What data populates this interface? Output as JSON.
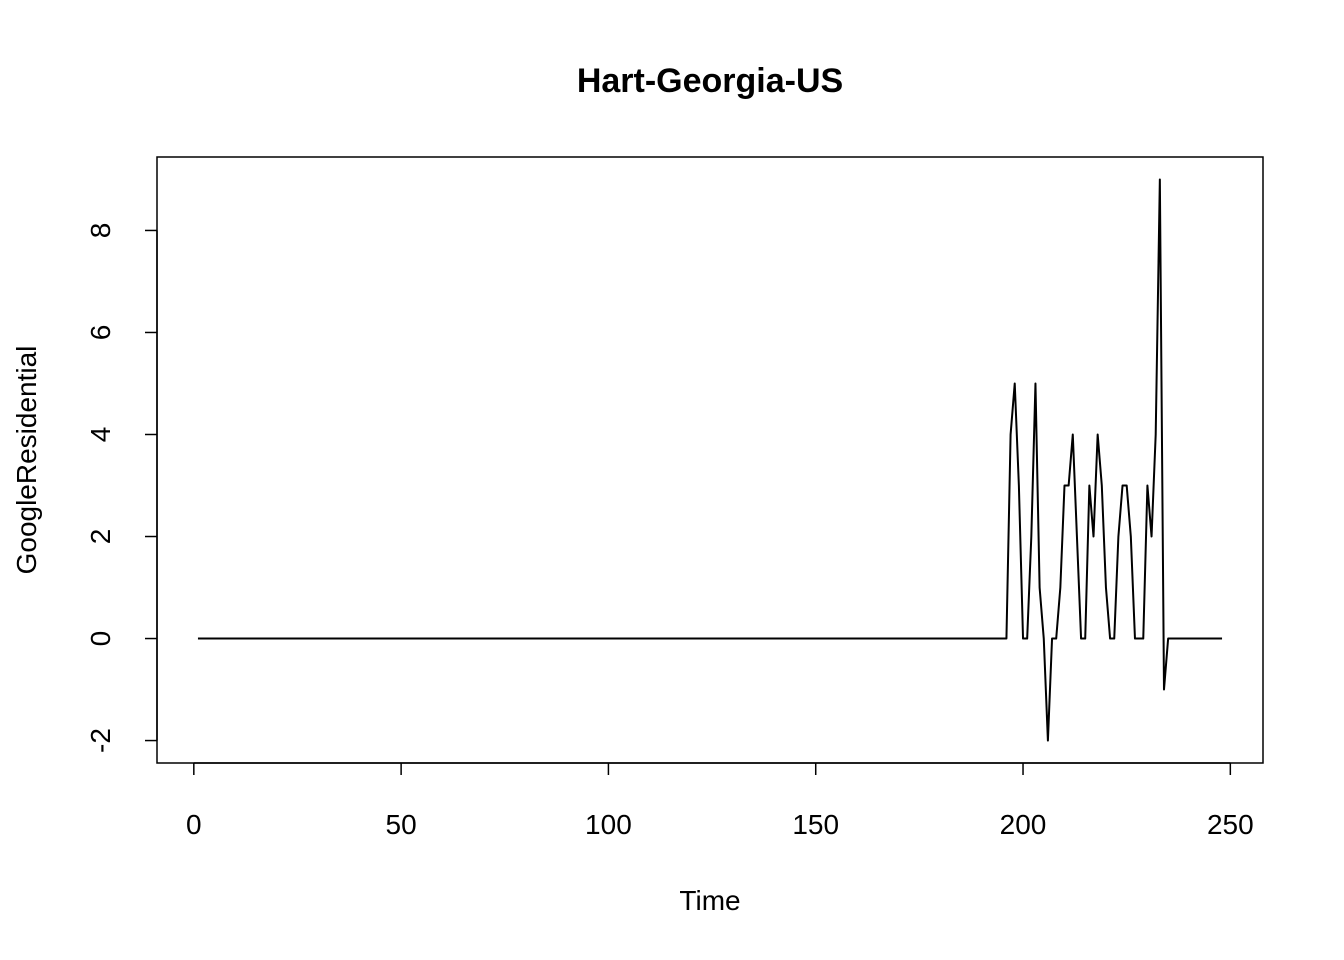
{
  "chart_data": {
    "type": "line",
    "title": "Hart-Georgia-US",
    "x_label": "Time",
    "y_label": "GoogleResidential",
    "x": [
      1,
      2,
      3,
      4,
      5,
      6,
      7,
      8,
      9,
      10,
      11,
      12,
      13,
      14,
      15,
      16,
      17,
      18,
      19,
      20,
      21,
      22,
      23,
      24,
      25,
      26,
      27,
      28,
      29,
      30,
      31,
      32,
      33,
      34,
      35,
      36,
      37,
      38,
      39,
      40,
      41,
      42,
      43,
      44,
      45,
      46,
      47,
      48,
      49,
      50,
      51,
      52,
      53,
      54,
      55,
      56,
      57,
      58,
      59,
      60,
      61,
      62,
      63,
      64,
      65,
      66,
      67,
      68,
      69,
      70,
      71,
      72,
      73,
      74,
      75,
      76,
      77,
      78,
      79,
      80,
      81,
      82,
      83,
      84,
      85,
      86,
      87,
      88,
      89,
      90,
      91,
      92,
      93,
      94,
      95,
      96,
      97,
      98,
      99,
      100,
      101,
      102,
      103,
      104,
      105,
      106,
      107,
      108,
      109,
      110,
      111,
      112,
      113,
      114,
      115,
      116,
      117,
      118,
      119,
      120,
      121,
      122,
      123,
      124,
      125,
      126,
      127,
      128,
      129,
      130,
      131,
      132,
      133,
      134,
      135,
      136,
      137,
      138,
      139,
      140,
      141,
      142,
      143,
      144,
      145,
      146,
      147,
      148,
      149,
      150,
      151,
      152,
      153,
      154,
      155,
      156,
      157,
      158,
      159,
      160,
      161,
      162,
      163,
      164,
      165,
      166,
      167,
      168,
      169,
      170,
      171,
      172,
      173,
      174,
      175,
      176,
      177,
      178,
      179,
      180,
      181,
      182,
      183,
      184,
      185,
      186,
      187,
      188,
      189,
      190,
      191,
      192,
      193,
      194,
      195,
      196,
      197,
      198,
      199,
      200,
      201,
      202,
      203,
      204,
      205,
      206,
      207,
      208,
      209,
      210,
      211,
      212,
      213,
      214,
      215,
      216,
      217,
      218,
      219,
      220,
      221,
      222,
      223,
      224,
      225,
      226,
      227,
      228,
      229,
      230,
      231,
      232,
      233,
      234,
      235,
      236,
      237,
      238,
      239,
      240,
      241,
      242,
      243,
      244,
      245,
      246,
      247,
      248
    ],
    "values": [
      0,
      0,
      0,
      0,
      0,
      0,
      0,
      0,
      0,
      0,
      0,
      0,
      0,
      0,
      0,
      0,
      0,
      0,
      0,
      0,
      0,
      0,
      0,
      0,
      0,
      0,
      0,
      0,
      0,
      0,
      0,
      0,
      0,
      0,
      0,
      0,
      0,
      0,
      0,
      0,
      0,
      0,
      0,
      0,
      0,
      0,
      0,
      0,
      0,
      0,
      0,
      0,
      0,
      0,
      0,
      0,
      0,
      0,
      0,
      0,
      0,
      0,
      0,
      0,
      0,
      0,
      0,
      0,
      0,
      0,
      0,
      0,
      0,
      0,
      0,
      0,
      0,
      0,
      0,
      0,
      0,
      0,
      0,
      0,
      0,
      0,
      0,
      0,
      0,
      0,
      0,
      0,
      0,
      0,
      0,
      0,
      0,
      0,
      0,
      0,
      0,
      0,
      0,
      0,
      0,
      0,
      0,
      0,
      0,
      0,
      0,
      0,
      0,
      0,
      0,
      0,
      0,
      0,
      0,
      0,
      0,
      0,
      0,
      0,
      0,
      0,
      0,
      0,
      0,
      0,
      0,
      0,
      0,
      0,
      0,
      0,
      0,
      0,
      0,
      0,
      0,
      0,
      0,
      0,
      0,
      0,
      0,
      0,
      0,
      0,
      0,
      0,
      0,
      0,
      0,
      0,
      0,
      0,
      0,
      0,
      0,
      0,
      0,
      0,
      0,
      0,
      0,
      0,
      0,
      0,
      0,
      0,
      0,
      0,
      0,
      0,
      0,
      0,
      0,
      0,
      0,
      0,
      0,
      0,
      0,
      0,
      0,
      0,
      0,
      0,
      0,
      0,
      0,
      0,
      0,
      0,
      4,
      5,
      3,
      0,
      0,
      2,
      5,
      1,
      0,
      -2,
      0,
      0,
      1,
      3,
      3,
      4,
      2,
      0,
      0,
      3,
      2,
      4,
      3,
      1,
      0,
      0,
      2,
      3,
      3,
      2,
      0,
      0,
      0,
      3,
      2,
      4,
      9,
      -1,
      0,
      0,
      0,
      0,
      0,
      0,
      0,
      0,
      0,
      0,
      0,
      0,
      0,
      0
    ],
    "color": "#000000",
    "xlim": [
      -8.88,
      257.88
    ],
    "xticks": [
      0,
      50,
      100,
      150,
      200,
      250
    ],
    "ylim": [
      -2.44,
      9.44
    ],
    "yticks": [
      -2,
      0,
      2,
      4,
      6,
      8
    ]
  }
}
